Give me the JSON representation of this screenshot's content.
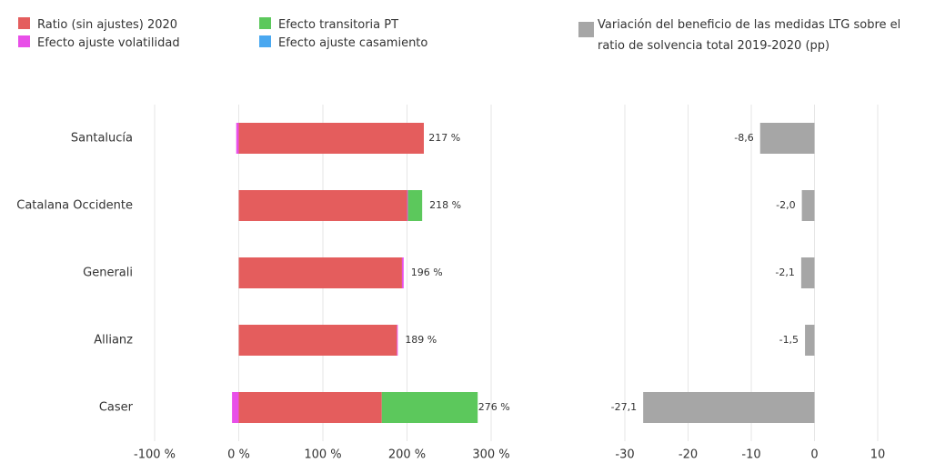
{
  "chart_data": [
    {
      "type": "stacked-barh",
      "categories": [
        "Santalucía",
        "Catalana Occidente",
        "Generali",
        "Allianz",
        "Caser"
      ],
      "series": [
        {
          "name": "Ratio (sin ajustes) 2020",
          "color": "#e45d5d",
          "values": [
            220,
            200,
            194,
            188,
            170
          ]
        },
        {
          "name": "Efecto ajuste volatilidad",
          "color": "#e84fe8",
          "values": [
            -3,
            1,
            2,
            1,
            -8
          ]
        },
        {
          "name": "Efecto transitoria PT",
          "color": "#5cc85c",
          "values": [
            0,
            17,
            0,
            0,
            114
          ]
        },
        {
          "name": "Efecto ajuste casamiento",
          "color": "#4aa8f0",
          "values": [
            0,
            0,
            0,
            0,
            0
          ]
        }
      ],
      "totals": [
        217,
        218,
        196,
        189,
        276
      ],
      "total_labels": [
        "217 %",
        "218 %",
        "196 %",
        "189 %",
        "276 %"
      ],
      "xlim": [
        -100,
        300
      ],
      "xticks": [
        {
          "value": -100,
          "label": "-100 %"
        },
        {
          "value": 0,
          "label": "0 %"
        },
        {
          "value": 100,
          "label": "100 %"
        },
        {
          "value": 200,
          "label": "200 %"
        },
        {
          "value": 300,
          "label": "300 %"
        }
      ],
      "grid": true
    },
    {
      "type": "barh",
      "series": [
        {
          "name": "Variación del beneficio de las medidas LTG sobre el ratio de solvencia total 2019-2020 (pp)",
          "color": "#a6a6a6",
          "values": [
            -8.6,
            -2.0,
            -2.1,
            -1.5,
            -27.1
          ],
          "value_labels": [
            "-8,6",
            "-2,0",
            "-2,1",
            "-1,5",
            "-27,1"
          ]
        }
      ],
      "xlim": [
        -30,
        10
      ],
      "xticks": [
        -30,
        -20,
        -10,
        0,
        10
      ],
      "grid": true
    }
  ]
}
